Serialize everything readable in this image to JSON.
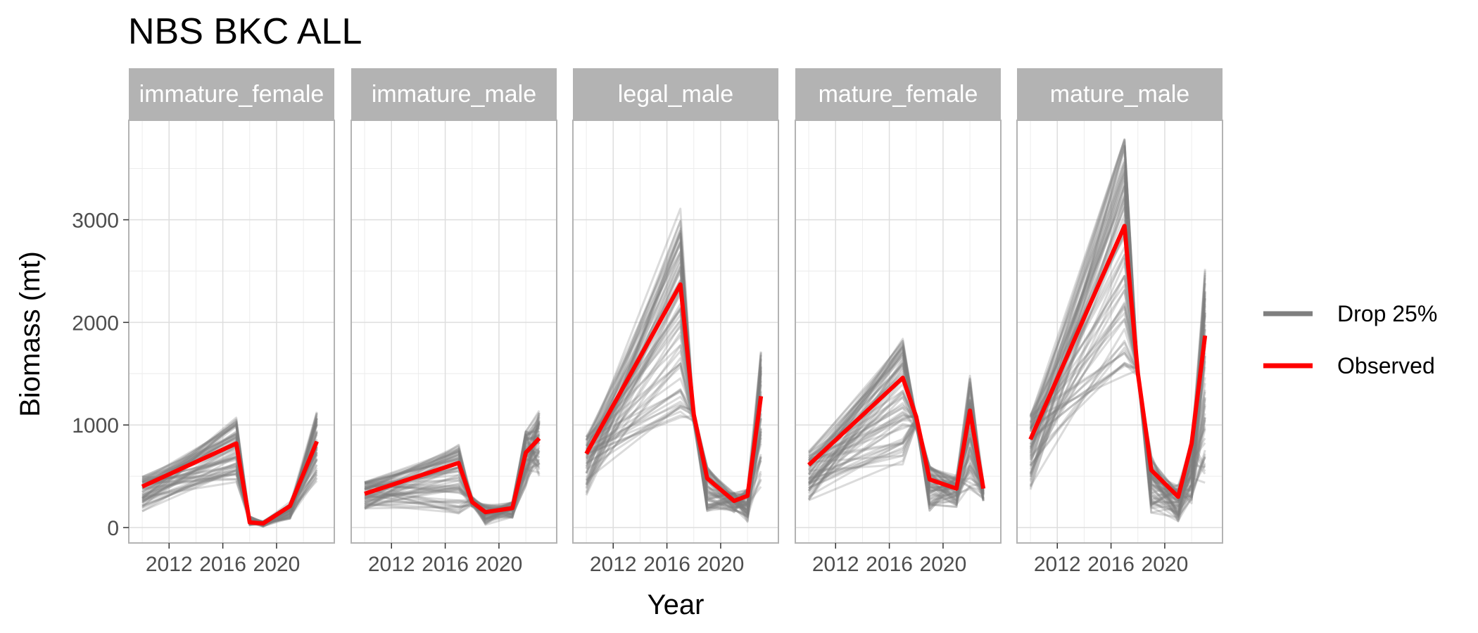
{
  "chart_data": {
    "type": "line",
    "title": "NBS BKC ALL",
    "xlabel": "Year",
    "ylabel": "Biomass (mt)",
    "x_ticks": [
      "2012",
      "2016",
      "2020"
    ],
    "y_ticks": [
      "0",
      "1000",
      "2000",
      "3000"
    ],
    "xlim": [
      2009.0,
      2024.3
    ],
    "ylim": [
      -150,
      3970
    ],
    "grid": true,
    "legend_position": "right",
    "legend": [
      {
        "label": "Drop 25%",
        "color": "#7f7f7f"
      },
      {
        "label": "Observed",
        "color": "#ff0000"
      }
    ],
    "panels": [
      {
        "name": "immature_female",
        "observed": {
          "x": [
            2010,
            2017,
            2018,
            2019,
            2021,
            2023
          ],
          "y": [
            400,
            820,
            50,
            40,
            210,
            840
          ]
        },
        "drop25_envelope": {
          "x": [
            2010,
            2017,
            2018,
            2019,
            2021,
            2023
          ],
          "low": [
            150,
            430,
            20,
            10,
            80,
            420
          ],
          "high": [
            500,
            1080,
            110,
            60,
            250,
            1130
          ]
        }
      },
      {
        "name": "immature_male",
        "observed": {
          "x": [
            2010,
            2017,
            2018,
            2019,
            2021,
            2022,
            2023
          ],
          "y": [
            330,
            630,
            250,
            150,
            190,
            730,
            870
          ]
        },
        "drop25_envelope": {
          "x": [
            2010,
            2017,
            2018,
            2019,
            2021,
            2022,
            2023
          ],
          "low": [
            180,
            120,
            200,
            20,
            90,
            400,
            500
          ],
          "high": [
            450,
            830,
            300,
            230,
            250,
            950,
            1160
          ]
        }
      },
      {
        "name": "legal_male",
        "observed": {
          "x": [
            2010,
            2017,
            2018,
            2019,
            2021,
            2022,
            2023
          ],
          "y": [
            720,
            2370,
            1100,
            480,
            260,
            310,
            1280
          ]
        },
        "drop25_envelope": {
          "x": [
            2010,
            2017,
            2018,
            2019,
            2021,
            2022,
            2023
          ],
          "low": [
            310,
            1050,
            1000,
            150,
            150,
            50,
            200
          ],
          "high": [
            900,
            3150,
            1150,
            610,
            340,
            380,
            1750
          ]
        }
      },
      {
        "name": "mature_female",
        "observed": {
          "x": [
            2010,
            2017,
            2018,
            2019,
            2021,
            2022,
            2023
          ],
          "y": [
            610,
            1460,
            1080,
            470,
            380,
            1140,
            380
          ]
        },
        "drop25_envelope": {
          "x": [
            2010,
            2017,
            2018,
            2019,
            2021,
            2022,
            2023
          ],
          "low": [
            260,
            600,
            950,
            150,
            200,
            350,
            250
          ],
          "high": [
            750,
            1890,
            1100,
            600,
            520,
            1490,
            450
          ]
        }
      },
      {
        "name": "mature_male",
        "observed": {
          "x": [
            2010,
            2017,
            2018,
            2019,
            2021,
            2022,
            2023
          ],
          "y": [
            860,
            2940,
            1500,
            560,
            300,
            820,
            1870
          ]
        },
        "drop25_envelope": {
          "x": [
            2010,
            2017,
            2018,
            2019,
            2021,
            2022,
            2023
          ],
          "low": [
            350,
            1400,
            1450,
            140,
            60,
            200,
            300
          ],
          "high": [
            1100,
            3800,
            1550,
            710,
            420,
            880,
            2550
          ]
        }
      }
    ]
  }
}
